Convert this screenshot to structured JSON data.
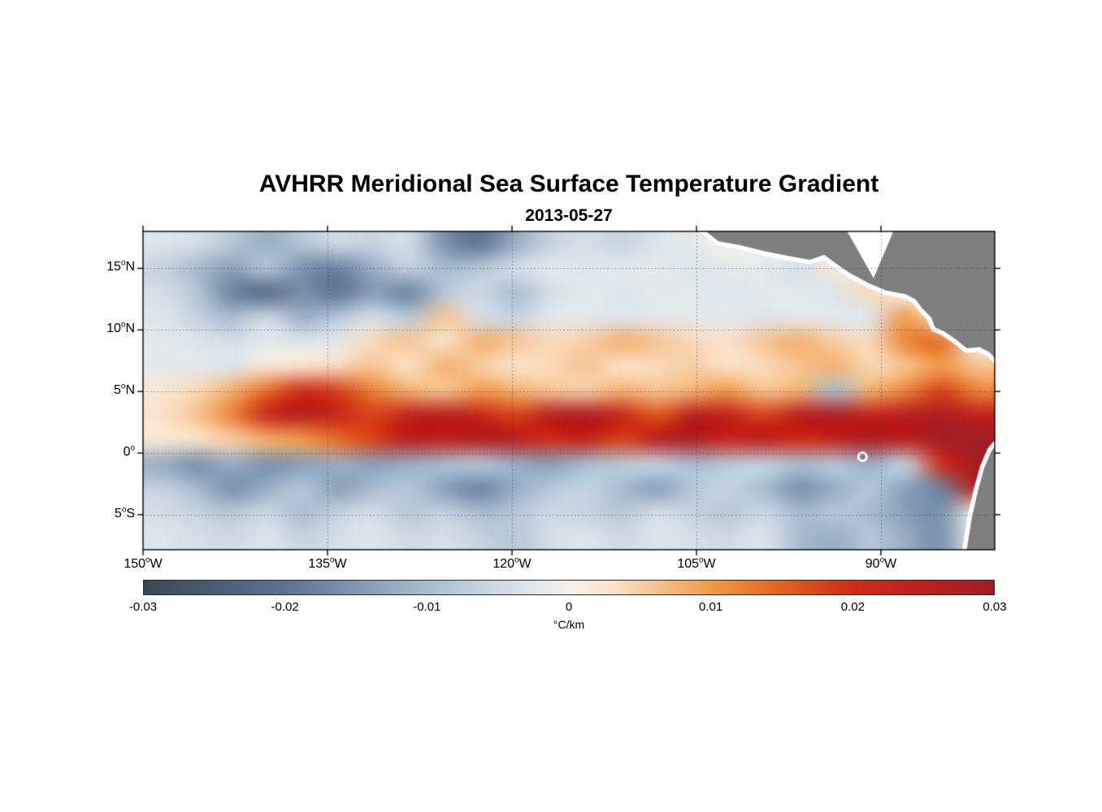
{
  "title": "AVHRR Meridional Sea Surface Temperature Gradient",
  "subtitle": "2013-05-27",
  "colorbar": {
    "ticks": [
      "-0.03",
      "-0.02",
      "-0.01",
      "0",
      "0.01",
      "0.02",
      "0.03"
    ],
    "unit": "°C/km"
  },
  "chart_data": {
    "type": "heatmap",
    "title": "AVHRR Meridional Sea Surface Temperature Gradient",
    "subtitle": "2013-05-27",
    "xlabel": "",
    "ylabel": "",
    "units": "°C/km",
    "grid_on": true,
    "lon_range": [
      -150,
      -80.75
    ],
    "lat_range": [
      -7.85,
      18.0
    ],
    "x_ticks": [
      {
        "label": "150",
        "sup": "o",
        "suffix": "W",
        "lon": -150
      },
      {
        "label": "135",
        "sup": "o",
        "suffix": "W",
        "lon": -135
      },
      {
        "label": "120",
        "sup": "o",
        "suffix": "W",
        "lon": -120
      },
      {
        "label": "105",
        "sup": "o",
        "suffix": "W",
        "lon": -105
      },
      {
        "label": "90",
        "sup": "o",
        "suffix": "W",
        "lon": -90
      }
    ],
    "y_ticks": [
      {
        "label": "15",
        "sup": "o",
        "suffix": "N",
        "lat": 15
      },
      {
        "label": "10",
        "sup": "o",
        "suffix": "N",
        "lat": 10
      },
      {
        "label": "5",
        "sup": "o",
        "suffix": "N",
        "lat": 5
      },
      {
        "label": "0",
        "sup": "o",
        "suffix": "",
        "lat": 0
      },
      {
        "label": "5",
        "sup": "o",
        "suffix": "S",
        "lat": -5
      }
    ],
    "colorbar_ticks": [
      "-0.03",
      "-0.02",
      "-0.01",
      "0",
      "0.01",
      "0.02",
      "0.03"
    ],
    "value_min": -0.03,
    "value_max": 0.03,
    "value_scale": 0.001,
    "colormap_stops": [
      [
        0.0,
        "#3a4654"
      ],
      [
        0.167,
        "#5c7393"
      ],
      [
        0.333,
        "#a8bccf"
      ],
      [
        0.45,
        "#dde5ec"
      ],
      [
        0.5,
        "#f5f1ea"
      ],
      [
        0.55,
        "#fae3cb"
      ],
      [
        0.667,
        "#f09b49"
      ],
      [
        0.75,
        "#e2621d"
      ],
      [
        0.833,
        "#cf2b18"
      ],
      [
        0.92,
        "#bb1f1c"
      ],
      [
        1.0,
        "#a21d24"
      ]
    ],
    "land_color": "#7f7f7f",
    "coast_gap_color": "#ffffff",
    "gridline_color": "rgba(35,60,110,0.6)",
    "grid_lons": [
      -150,
      -147,
      -144,
      -141,
      -138,
      -135,
      -132,
      -129,
      -126,
      -123,
      -120,
      -117,
      -114,
      -111,
      -108,
      -105,
      -102,
      -99,
      -96,
      -93,
      -90,
      -87,
      -84,
      -81
    ],
    "grid_lats": [
      17,
      15,
      13,
      11,
      9,
      7,
      5,
      3,
      1,
      -1,
      -3,
      -5,
      -7
    ],
    "values": [
      [
        -3,
        -4,
        -8,
        -12,
        -8,
        -5,
        -6,
        -4,
        -16,
        -20,
        -12,
        -6,
        -4,
        -6,
        -3,
        -2,
        null,
        null,
        null,
        null,
        null,
        null,
        null,
        null
      ],
      [
        -6,
        -10,
        -14,
        -8,
        -16,
        -18,
        -12,
        -6,
        -10,
        -8,
        -4,
        -2,
        -3,
        -2,
        -2,
        -3,
        -2,
        -2,
        -4,
        2,
        null,
        null,
        null,
        null
      ],
      [
        -4,
        -8,
        -18,
        -22,
        -16,
        -20,
        -14,
        -18,
        -8,
        -5,
        -10,
        -4,
        -2,
        -3,
        -2,
        -2,
        -3,
        -2,
        -2,
        -3,
        4,
        null,
        null,
        null
      ],
      [
        -3,
        -6,
        -10,
        -5,
        -12,
        -8,
        -4,
        -8,
        6,
        -4,
        -6,
        -2,
        -2,
        -3,
        -2,
        -2,
        -2,
        -3,
        -2,
        -2,
        -3,
        10,
        null,
        null
      ],
      [
        -2,
        -3,
        -4,
        -2,
        -3,
        -2,
        4,
        6,
        3,
        8,
        6,
        4,
        5,
        8,
        6,
        4,
        3,
        6,
        8,
        5,
        4,
        12,
        14,
        null
      ],
      [
        -2,
        -2,
        -3,
        2,
        3,
        4,
        6,
        3,
        8,
        5,
        3,
        4,
        6,
        3,
        4,
        5,
        3,
        4,
        6,
        8,
        4,
        6,
        10,
        6
      ],
      [
        2,
        4,
        8,
        14,
        20,
        18,
        12,
        8,
        6,
        10,
        8,
        6,
        5,
        8,
        6,
        8,
        10,
        6,
        8,
        -10,
        8,
        12,
        18,
        12
      ],
      [
        3,
        6,
        12,
        22,
        26,
        22,
        18,
        24,
        26,
        22,
        18,
        26,
        28,
        22,
        16,
        26,
        24,
        18,
        26,
        28,
        24,
        26,
        28,
        24
      ],
      [
        2,
        3,
        5,
        8,
        10,
        14,
        18,
        26,
        24,
        28,
        26,
        20,
        24,
        18,
        26,
        28,
        22,
        26,
        20,
        24,
        28,
        26,
        30,
        30
      ],
      [
        -12,
        -16,
        -12,
        -16,
        -14,
        -12,
        -14,
        -12,
        -10,
        -8,
        -12,
        -14,
        -10,
        -8,
        -6,
        -10,
        -8,
        -6,
        -10,
        -8,
        -12,
        -6,
        20,
        30
      ],
      [
        -6,
        -10,
        -16,
        -12,
        -8,
        -14,
        -10,
        -8,
        -14,
        -18,
        -12,
        -8,
        -6,
        -10,
        -14,
        -8,
        -6,
        -10,
        -16,
        -12,
        -8,
        -14,
        -18,
        24
      ],
      [
        -4,
        -6,
        -8,
        -5,
        -10,
        -6,
        -4,
        -8,
        -6,
        -10,
        -8,
        -5,
        -6,
        -8,
        -4,
        -6,
        -8,
        -5,
        -10,
        -8,
        -10,
        -14,
        -16,
        null
      ],
      [
        -3,
        -4,
        -5,
        -3,
        -6,
        -4,
        -3,
        -5,
        -4,
        -6,
        -8,
        -4,
        -3,
        -5,
        -3,
        -4,
        -5,
        -3,
        -10,
        -12,
        -8,
        -12,
        -16,
        null
      ]
    ],
    "land_polygons": {
      "central_america": [
        [
          -104.8,
          18.45
        ],
        [
          -103.2,
          17.2
        ],
        [
          -101.5,
          16.9
        ],
        [
          -99.5,
          16.4
        ],
        [
          -97.5,
          16.0
        ],
        [
          -95.8,
          15.7
        ],
        [
          -94.6,
          16.1
        ],
        [
          -93.8,
          15.5
        ],
        [
          -92.5,
          14.6
        ],
        [
          -91.0,
          13.8
        ],
        [
          -89.6,
          13.2
        ],
        [
          -88.0,
          12.9
        ],
        [
          -87.2,
          12.5
        ],
        [
          -86.6,
          11.7
        ],
        [
          -85.9,
          11.0
        ],
        [
          -85.6,
          10.2
        ],
        [
          -84.9,
          9.9
        ],
        [
          -84.0,
          9.3
        ],
        [
          -83.0,
          8.5
        ],
        [
          -82.0,
          8.6
        ],
        [
          -81.2,
          8.2
        ],
        [
          -80.3,
          7.3
        ],
        [
          -80.0,
          7.6
        ],
        [
          -80.0,
          18.45
        ]
      ],
      "caribbean_nodata": [
        [
          -93.0,
          18.45
        ],
        [
          -88.8,
          18.45
        ],
        [
          -90.6,
          14.2
        ]
      ],
      "south_america": [
        [
          -80.3,
          1.0
        ],
        [
          -81.0,
          0.2
        ],
        [
          -81.6,
          -1.2
        ],
        [
          -82.1,
          -3.0
        ],
        [
          -82.6,
          -5.2
        ],
        [
          -83.1,
          -8.3
        ],
        [
          -80.0,
          -8.3
        ],
        [
          -80.0,
          1.0
        ]
      ],
      "galapagos_center": [
        -91.5,
        -0.3
      ]
    }
  }
}
